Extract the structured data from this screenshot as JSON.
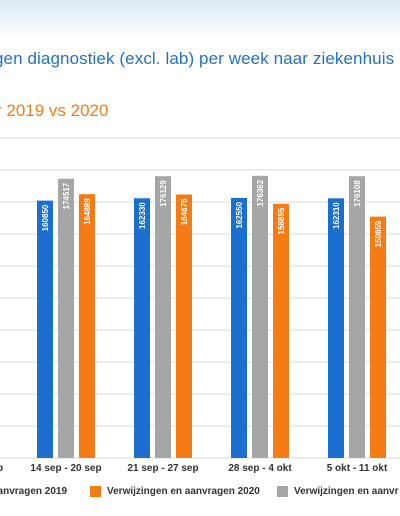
{
  "header": {
    "title": "gen diagnostiek (excl. lab) per week naar ziekenhuis",
    "subtitle": "r 2019 vs 2020"
  },
  "chart_data": {
    "type": "bar",
    "categories": [
      "14 sep - 20 sep",
      "21 sep - 27 sep",
      "28 sep - 4 okt",
      "5 okt - 11 okt"
    ],
    "partial_left_tick_label": "p",
    "series": [
      {
        "name": "aanvragen 2019",
        "color": "#1a6fd1",
        "values": [
          160850,
          162330,
          162550,
          162310
        ]
      },
      {
        "name": "",
        "color": "#a6a6a6",
        "values": [
          174517,
          176129,
          176362,
          176108
        ]
      },
      {
        "name": "Verwijzingen en aanvragen 2020",
        "color": "#f57c14",
        "values": [
          164889,
          164675,
          158895,
          150859
        ]
      }
    ],
    "legend_series": [
      {
        "name": "aanvragen 2019",
        "color": "#1a6fd1"
      },
      {
        "name": "Verwijzingen en aanvragen 2020",
        "color": "#f57c14"
      },
      {
        "name": "Verwijzingen en aanvr",
        "color": "#a6a6a6"
      }
    ],
    "ylim": [
      0,
      200000
    ],
    "grid": true,
    "legend": "bottom"
  }
}
